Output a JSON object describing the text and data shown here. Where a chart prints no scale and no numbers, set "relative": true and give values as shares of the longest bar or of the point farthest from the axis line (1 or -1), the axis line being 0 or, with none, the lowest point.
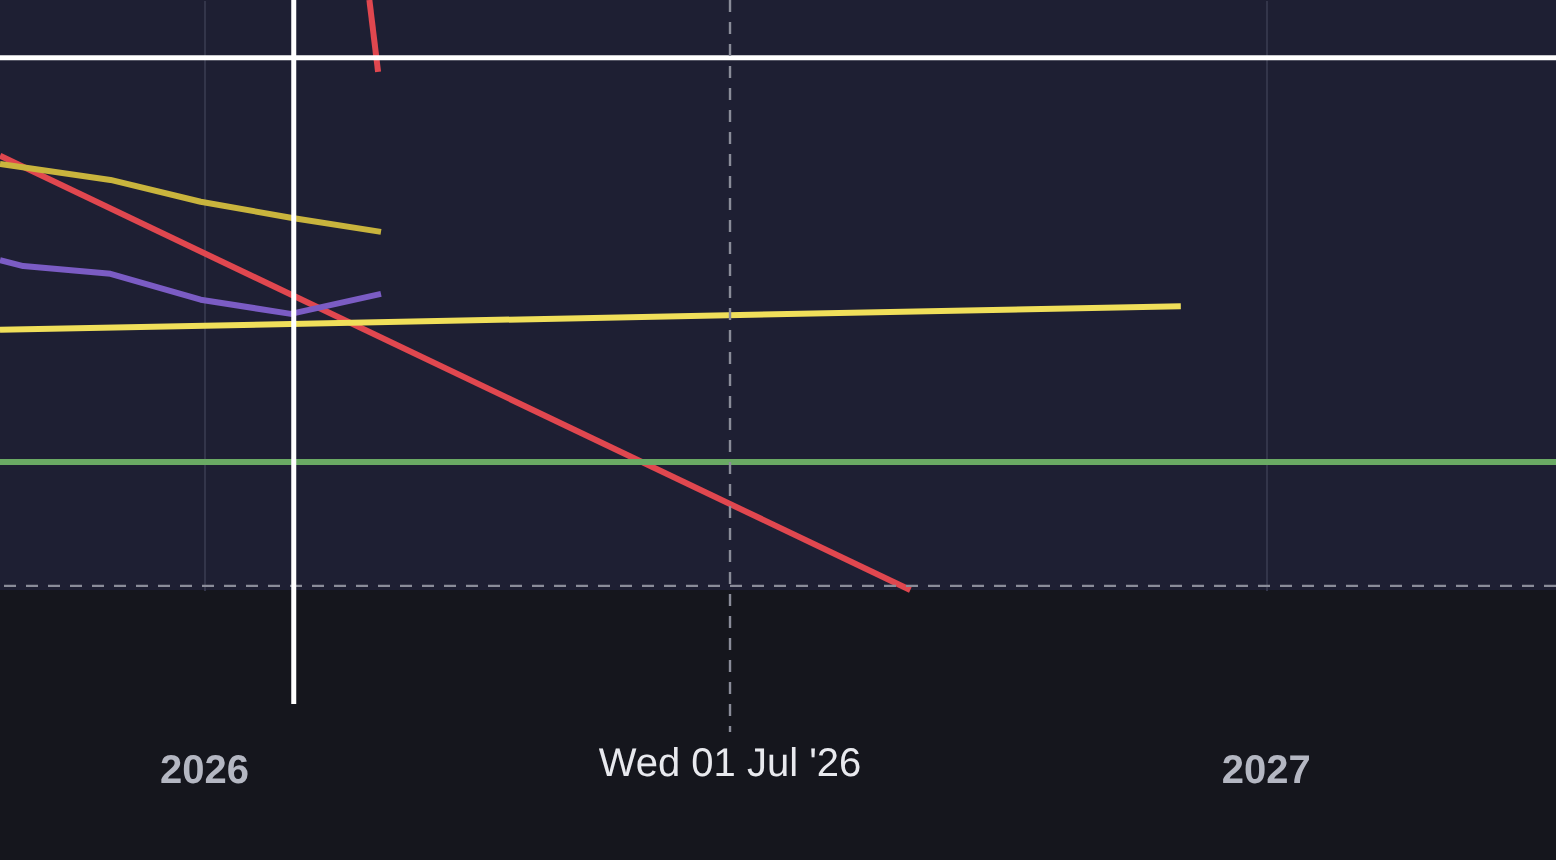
{
  "chart_data": {
    "type": "line",
    "relative": true,
    "xlim": [
      "2025-10-23",
      "2027-04-11"
    ],
    "xticks": [
      {
        "value": "2026-01-01",
        "label": "2026"
      },
      {
        "value": "2027-01-01",
        "label": "2027"
      }
    ],
    "grid": "x",
    "tick_labels": "x",
    "series": [
      {
        "color": "#e0474f",
        "x": [
          "2026-02-27",
          "2026-03-02"
        ],
        "values": [
          1.0,
          0.878
        ]
      },
      {
        "color": "#e0474f",
        "x": [
          "2025-10-23",
          "2026-09-01"
        ],
        "values": [
          0.736,
          0
        ]
      },
      {
        "color": "#c9b43d",
        "x": [
          "2025-10-23",
          "2025-11-30",
          "2025-12-31",
          "2026-01-31",
          "2026-03-03"
        ],
        "values": [
          0.722,
          0.695,
          0.658,
          0.631,
          0.607
        ]
      },
      {
        "color": "#7b5cc4",
        "x": [
          "2025-10-23",
          "2025-10-31",
          "2025-11-30",
          "2025-12-31",
          "2026-01-31",
          "2026-03-03"
        ],
        "values": [
          0.559,
          0.549,
          0.536,
          0.492,
          0.468,
          0.502
        ]
      },
      {
        "color": "#f0df5a",
        "x": [
          "2025-10-23",
          "2026-12-03"
        ],
        "values": [
          0.441,
          0.481
        ]
      },
      {
        "color": "#6aaa64",
        "x": [
          "2025-10-23",
          "2027-04-11"
        ],
        "values": [
          0.217,
          0.217
        ]
      }
    ],
    "ref_lines": [
      {
        "axis": "y",
        "value": 0.902,
        "color": "#ffffff",
        "line_style": "solid"
      },
      {
        "axis": "y",
        "value": 0.007,
        "color": "#8a8c99",
        "line_style": "dashed"
      },
      {
        "axis": "x",
        "value": "2026-02-01",
        "color": "#ffffff",
        "line_style": "solid"
      },
      {
        "axis": "x",
        "value": "2026-07-01",
        "color": "#8a8c99",
        "line_style": "dashed",
        "label": "Wed 01 Jul '26"
      }
    ]
  }
}
